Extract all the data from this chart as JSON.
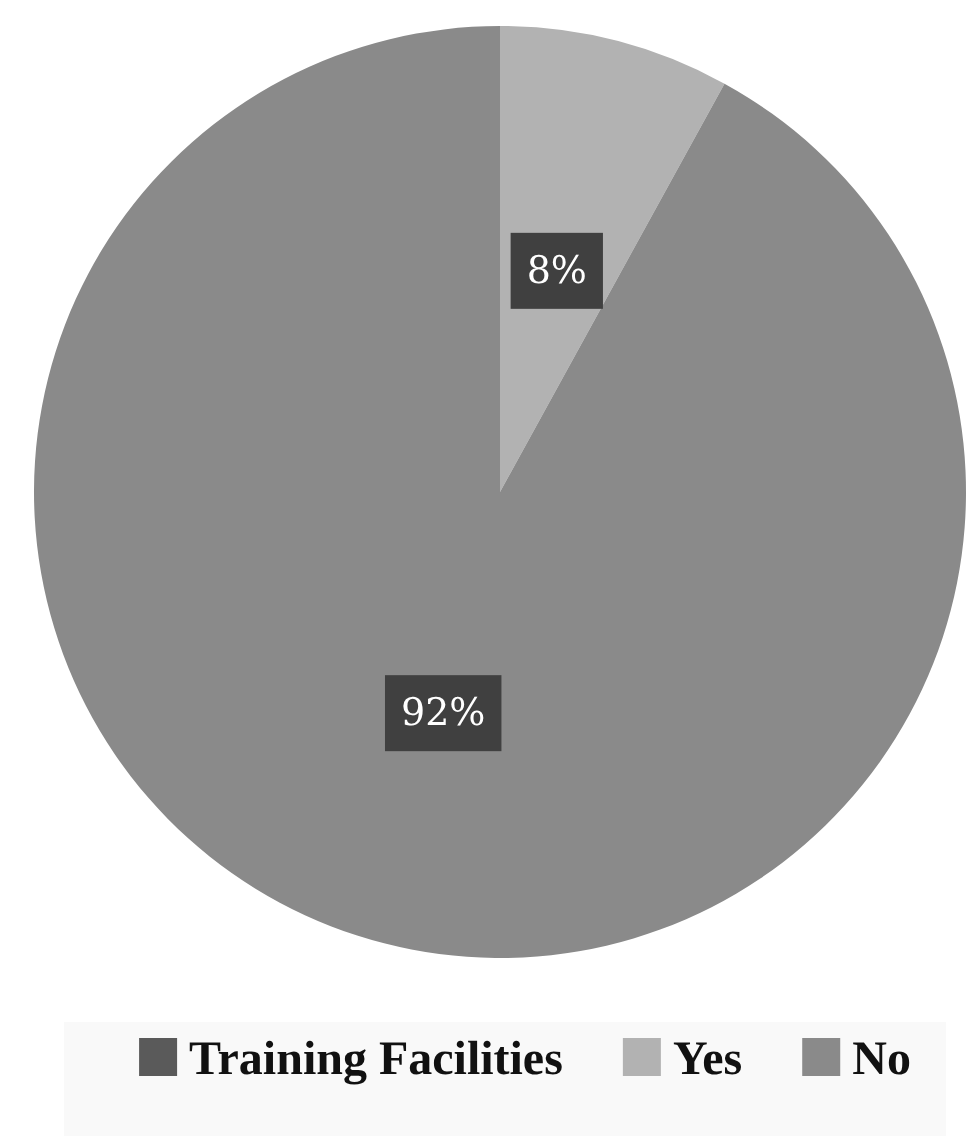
{
  "chart_data": {
    "type": "pie",
    "categories": [
      "Training Facilities",
      "Yes",
      "No"
    ],
    "values": [
      0,
      8,
      92
    ],
    "colors": [
      "#5a5a5a",
      "#b2b2b2",
      "#8a8a8a"
    ],
    "value_labels": [
      null,
      "8%",
      "92%"
    ],
    "legend": "bottom"
  }
}
